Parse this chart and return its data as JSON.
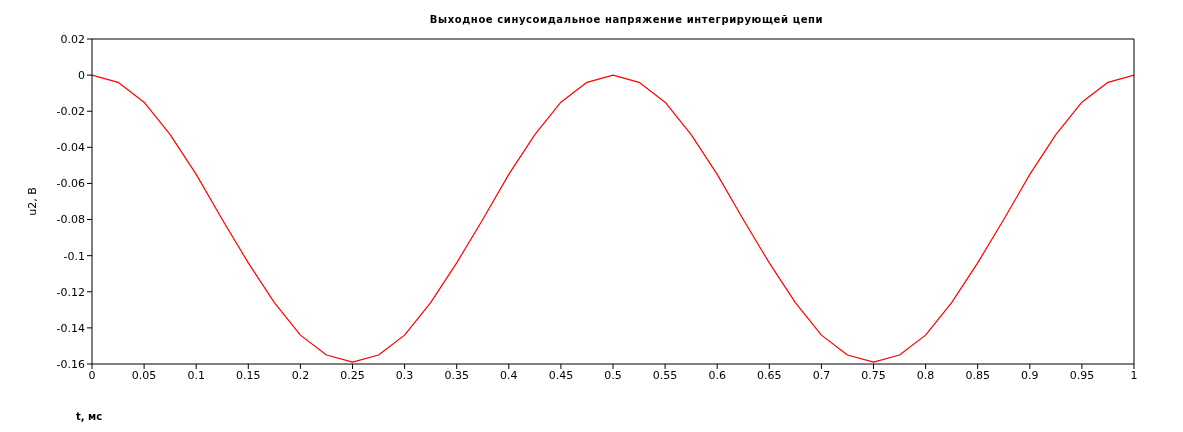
{
  "chart_data": {
    "type": "line",
    "title": "Выходное синусоидальное напряжение интегрирующей цепи",
    "xlabel": "t, мс",
    "ylabel": "u2, В",
    "x": [
      0,
      0.025,
      0.05,
      0.075,
      0.1,
      0.125,
      0.15,
      0.175,
      0.2,
      0.225,
      0.25,
      0.275,
      0.3,
      0.325,
      0.35,
      0.375,
      0.4,
      0.425,
      0.45,
      0.475,
      0.5,
      0.525,
      0.55,
      0.575,
      0.6,
      0.625,
      0.65,
      0.675,
      0.7,
      0.725,
      0.75,
      0.775,
      0.8,
      0.825,
      0.85,
      0.875,
      0.9,
      0.925,
      0.95,
      0.975,
      1
    ],
    "series": [
      {
        "color": "#ff0000",
        "values": [
          0,
          -0.004,
          -0.015,
          -0.033,
          -0.055,
          -0.08,
          -0.104,
          -0.126,
          -0.144,
          -0.155,
          -0.159,
          -0.155,
          -0.144,
          -0.126,
          -0.104,
          -0.08,
          -0.055,
          -0.033,
          -0.015,
          -0.004,
          0,
          -0.004,
          -0.015,
          -0.033,
          -0.055,
          -0.08,
          -0.104,
          -0.126,
          -0.144,
          -0.155,
          -0.159,
          -0.155,
          -0.144,
          -0.126,
          -0.104,
          -0.08,
          -0.055,
          -0.033,
          -0.015,
          -0.004,
          0
        ]
      }
    ],
    "xlim": [
      0,
      1
    ],
    "xticks": [
      0,
      0.05,
      0.1,
      0.15,
      0.2,
      0.25,
      0.3,
      0.35,
      0.4,
      0.45,
      0.5,
      0.55,
      0.6,
      0.65,
      0.7,
      0.75,
      0.8,
      0.85,
      0.9,
      0.95,
      1
    ],
    "ylim": [
      -0.16,
      0.02
    ],
    "yticks": [
      0.02,
      0,
      -0.02,
      -0.04,
      -0.06,
      -0.08,
      -0.1,
      -0.12,
      -0.14,
      -0.16
    ],
    "grid": false,
    "legend": false,
    "marker": "none",
    "line_style": "solid"
  }
}
